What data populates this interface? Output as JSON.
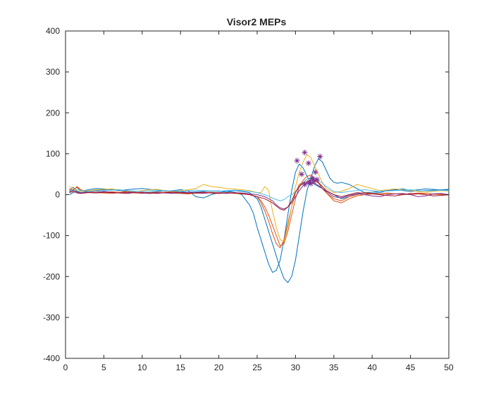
{
  "chart_data": {
    "type": "line",
    "title": "Visor2 MEPs",
    "xlabel": "",
    "ylabel": "",
    "xlim": [
      0,
      50
    ],
    "ylim": [
      -400,
      400
    ],
    "xticks": [
      0,
      5,
      10,
      15,
      20,
      25,
      30,
      35,
      40,
      45,
      50
    ],
    "yticks": [
      -400,
      -300,
      -200,
      -100,
      0,
      100,
      200,
      300,
      400
    ],
    "grid": false,
    "legend": "none",
    "series": [
      {
        "color": "#0072BD",
        "x": [
          0.5,
          1,
          1.5,
          2,
          3,
          4,
          5,
          6,
          7,
          8,
          9,
          10,
          11,
          12,
          13,
          14,
          15,
          16,
          17,
          18,
          19,
          20,
          21,
          22,
          23,
          24,
          24.5,
          25,
          25.5,
          26,
          26.5,
          27,
          27.5,
          28,
          28.5,
          29,
          29.5,
          30,
          30.5,
          31,
          31.5,
          32,
          32.5,
          33,
          33.5,
          34,
          34.5,
          35,
          36,
          37,
          38,
          39,
          40,
          41,
          42,
          43,
          44,
          45,
          46,
          47,
          48,
          49,
          50
        ],
        "y": [
          10,
          18,
          8,
          5,
          8,
          10,
          12,
          13,
          11,
          8,
          6,
          5,
          6,
          8,
          10,
          9,
          7,
          6,
          7,
          8,
          9,
          9,
          8,
          6,
          0,
          -25,
          -45,
          -80,
          -110,
          -140,
          -170,
          -190,
          -185,
          -160,
          -110,
          -50,
          10,
          55,
          75,
          65,
          45,
          30,
          25,
          20,
          15,
          10,
          5,
          0,
          -10,
          -5,
          2,
          5,
          6,
          8,
          10,
          12,
          10,
          8,
          9,
          10,
          11,
          12,
          13
        ]
      },
      {
        "color": "#0072BD",
        "x": [
          0.5,
          1,
          1.5,
          2,
          3,
          4,
          5,
          6,
          7,
          8,
          9,
          10,
          11,
          12,
          13,
          14,
          15,
          16,
          17,
          18,
          19,
          20,
          21,
          22,
          23,
          24,
          25,
          25.5,
          26,
          26.5,
          27,
          27.5,
          28,
          28.5,
          29,
          29.5,
          30,
          30.5,
          31,
          31.5,
          32,
          32.5,
          33,
          33.5,
          34,
          34.5,
          35,
          35.5,
          36,
          37,
          38,
          39,
          40,
          41,
          42,
          43,
          44,
          45,
          46,
          47,
          48,
          49,
          50
        ],
        "y": [
          0,
          5,
          10,
          8,
          12,
          15,
          14,
          12,
          10,
          12,
          14,
          15,
          13,
          11,
          9,
          10,
          12,
          10,
          -5,
          -8,
          0,
          5,
          8,
          10,
          8,
          5,
          -10,
          -30,
          -60,
          -90,
          -120,
          -150,
          -180,
          -205,
          -215,
          -200,
          -160,
          -100,
          -40,
          10,
          40,
          70,
          88,
          80,
          60,
          40,
          30,
          28,
          30,
          25,
          15,
          5,
          3,
          5,
          10,
          12,
          14,
          10,
          12,
          14,
          13,
          11,
          12
        ]
      },
      {
        "color": "#D95319",
        "x": [
          0.5,
          1,
          1.5,
          2,
          3,
          4,
          5,
          6,
          7,
          8,
          9,
          10,
          11,
          12,
          13,
          14,
          15,
          16,
          17,
          18,
          19,
          20,
          21,
          22,
          23,
          24,
          25,
          25.5,
          26,
          26.5,
          27,
          27.5,
          28,
          28.5,
          29,
          29.5,
          30,
          30.5,
          31,
          31.5,
          32,
          32.5,
          33,
          33.5,
          34,
          35,
          36,
          37,
          38,
          39,
          40,
          41,
          42,
          43,
          44,
          45,
          46,
          47,
          48,
          49,
          50
        ],
        "y": [
          15,
          10,
          20,
          12,
          6,
          8,
          5,
          7,
          6,
          8,
          5,
          4,
          3,
          5,
          6,
          8,
          5,
          4,
          3,
          5,
          4,
          3,
          5,
          4,
          2,
          0,
          -5,
          -15,
          -30,
          -50,
          -75,
          -100,
          -125,
          -120,
          -90,
          -50,
          -10,
          20,
          35,
          45,
          48,
          40,
          30,
          15,
          5,
          -10,
          -15,
          -5,
          0,
          5,
          3,
          2,
          4,
          2,
          0,
          2,
          4,
          3,
          2,
          1,
          0
        ]
      },
      {
        "color": "#D95319",
        "x": [
          0.5,
          1,
          1.5,
          2,
          3,
          4,
          5,
          6,
          7,
          8,
          9,
          10,
          11,
          12,
          13,
          14,
          15,
          16,
          17,
          18,
          19,
          20,
          21,
          22,
          23,
          24,
          25,
          25.5,
          26,
          26.5,
          27,
          27.5,
          28,
          28.5,
          29,
          29.5,
          30,
          30.5,
          31,
          31.5,
          32,
          32.5,
          33,
          33.5,
          34,
          35,
          36,
          37,
          38,
          39,
          40,
          41,
          42,
          43,
          44,
          45,
          46,
          47,
          48,
          49,
          50
        ],
        "y": [
          5,
          12,
          18,
          10,
          6,
          5,
          4,
          3,
          5,
          6,
          4,
          3,
          5,
          6,
          5,
          4,
          3,
          2,
          4,
          5,
          6,
          5,
          4,
          3,
          2,
          0,
          -5,
          -20,
          -40,
          -65,
          -95,
          -120,
          -130,
          -110,
          -70,
          -30,
          5,
          25,
          30,
          38,
          40,
          35,
          28,
          15,
          5,
          -15,
          -20,
          -10,
          -3,
          0,
          2,
          1,
          3,
          2,
          1,
          0,
          2,
          3,
          1,
          0,
          -1
        ]
      },
      {
        "color": "#EDB120",
        "x": [
          0.5,
          1,
          1.5,
          2,
          3,
          4,
          5,
          6,
          7,
          8,
          9,
          10,
          11,
          12,
          13,
          14,
          15,
          16,
          17,
          18,
          19,
          20,
          21,
          22,
          23,
          24,
          25,
          25.5,
          26,
          26.5,
          27,
          27.5,
          28,
          28.5,
          29,
          29.5,
          30,
          30.5,
          31,
          31.5,
          32,
          32.5,
          33,
          33.5,
          34,
          35,
          36,
          37,
          38,
          39,
          40,
          41,
          42,
          43,
          44,
          45,
          46,
          47,
          48,
          49,
          50
        ],
        "y": [
          20,
          15,
          10,
          8,
          10,
          12,
          13,
          14,
          12,
          10,
          8,
          10,
          12,
          13,
          10,
          8,
          10,
          12,
          15,
          25,
          20,
          18,
          15,
          14,
          12,
          10,
          5,
          5,
          20,
          10,
          -40,
          -80,
          -110,
          -115,
          -80,
          -30,
          20,
          55,
          80,
          98,
          90,
          70,
          50,
          30,
          15,
          5,
          8,
          15,
          25,
          20,
          15,
          10,
          12,
          14,
          12,
          10,
          8,
          6,
          8,
          10,
          9
        ]
      },
      {
        "color": "#7E2F8E",
        "x": [
          0.5,
          1,
          1.5,
          2,
          3,
          4,
          5,
          6,
          7,
          8,
          9,
          10,
          11,
          12,
          13,
          14,
          15,
          16,
          17,
          18,
          19,
          20,
          21,
          22,
          23,
          24,
          25,
          26,
          27,
          27.5,
          28,
          28.5,
          29,
          29.5,
          30,
          30.5,
          31,
          31.5,
          32,
          32.5,
          33,
          33.5,
          34,
          35,
          36,
          37,
          38,
          39,
          40,
          41,
          42,
          43,
          44,
          45,
          46,
          47,
          48,
          49,
          50
        ],
        "y": [
          8,
          12,
          6,
          4,
          6,
          5,
          8,
          6,
          4,
          5,
          6,
          4,
          3,
          5,
          4,
          3,
          5,
          6,
          4,
          3,
          5,
          4,
          3,
          5,
          4,
          2,
          0,
          -5,
          -15,
          -25,
          -32,
          -35,
          -30,
          -20,
          -5,
          10,
          22,
          28,
          30,
          28,
          22,
          15,
          8,
          -5,
          -8,
          -2,
          2,
          0,
          -3,
          -5,
          0,
          2,
          3,
          0,
          -5,
          -3,
          2,
          3,
          0
        ]
      },
      {
        "color": "#4DBEEE",
        "x": [
          0.5,
          1,
          1.5,
          2,
          3,
          4,
          5,
          6,
          7,
          8,
          9,
          10,
          11,
          12,
          13,
          14,
          15,
          16,
          17,
          18,
          19,
          20,
          21,
          22,
          23,
          24,
          25,
          26,
          27,
          27.5,
          28,
          28.5,
          29,
          29.5,
          30,
          30.5,
          31,
          31.5,
          32,
          32.5,
          33,
          33.5,
          34,
          35,
          36,
          37,
          38,
          39,
          40,
          41,
          42,
          43,
          44,
          45,
          46,
          47,
          48,
          49,
          50
        ],
        "y": [
          12,
          8,
          14,
          10,
          8,
          9,
          10,
          11,
          12,
          10,
          9,
          8,
          10,
          11,
          10,
          9,
          8,
          10,
          11,
          10,
          9,
          8,
          10,
          11,
          10,
          8,
          5,
          0,
          -8,
          -12,
          -15,
          -12,
          -5,
          0,
          8,
          18,
          30,
          38,
          42,
          40,
          35,
          28,
          20,
          8,
          5,
          8,
          10,
          12,
          10,
          8,
          9,
          10,
          11,
          12,
          10,
          9,
          10,
          11,
          10
        ]
      },
      {
        "color": "#A2142F",
        "x": [
          0.5,
          1,
          1.5,
          2,
          3,
          4,
          5,
          6,
          7,
          8,
          9,
          10,
          11,
          12,
          13,
          14,
          15,
          16,
          17,
          18,
          19,
          20,
          21,
          22,
          23,
          24,
          25,
          26,
          27,
          27.5,
          28,
          28.5,
          29,
          29.5,
          30,
          30.5,
          31,
          31.5,
          32,
          32.5,
          33,
          33.5,
          34,
          35,
          36,
          37,
          38,
          39,
          40,
          41,
          42,
          43,
          44,
          45,
          46,
          47,
          48,
          49,
          50
        ],
        "y": [
          5,
          8,
          4,
          3,
          5,
          4,
          6,
          5,
          4,
          3,
          5,
          6,
          4,
          3,
          5,
          6,
          4,
          3,
          5,
          6,
          4,
          3,
          5,
          4,
          3,
          0,
          -5,
          -10,
          -20,
          -28,
          -35,
          -38,
          -30,
          -15,
          5,
          20,
          28,
          32,
          36,
          35,
          30,
          20,
          10,
          0,
          -5,
          0,
          5,
          3,
          2,
          0,
          -2,
          -3,
          0,
          3,
          2,
          0,
          -3,
          -2,
          0
        ]
      }
    ],
    "markers": {
      "color": "#7E2F8E",
      "symbol": "*",
      "points": [
        [
          30.2,
          83
        ],
        [
          31.2,
          103
        ],
        [
          31.7,
          77
        ],
        [
          33.2,
          93
        ],
        [
          30.8,
          50
        ],
        [
          32.6,
          55
        ],
        [
          31.2,
          25
        ],
        [
          31.8,
          30
        ],
        [
          32.2,
          40
        ],
        [
          32.4,
          33
        ],
        [
          32.0,
          27
        ],
        [
          32.8,
          37
        ]
      ]
    }
  }
}
